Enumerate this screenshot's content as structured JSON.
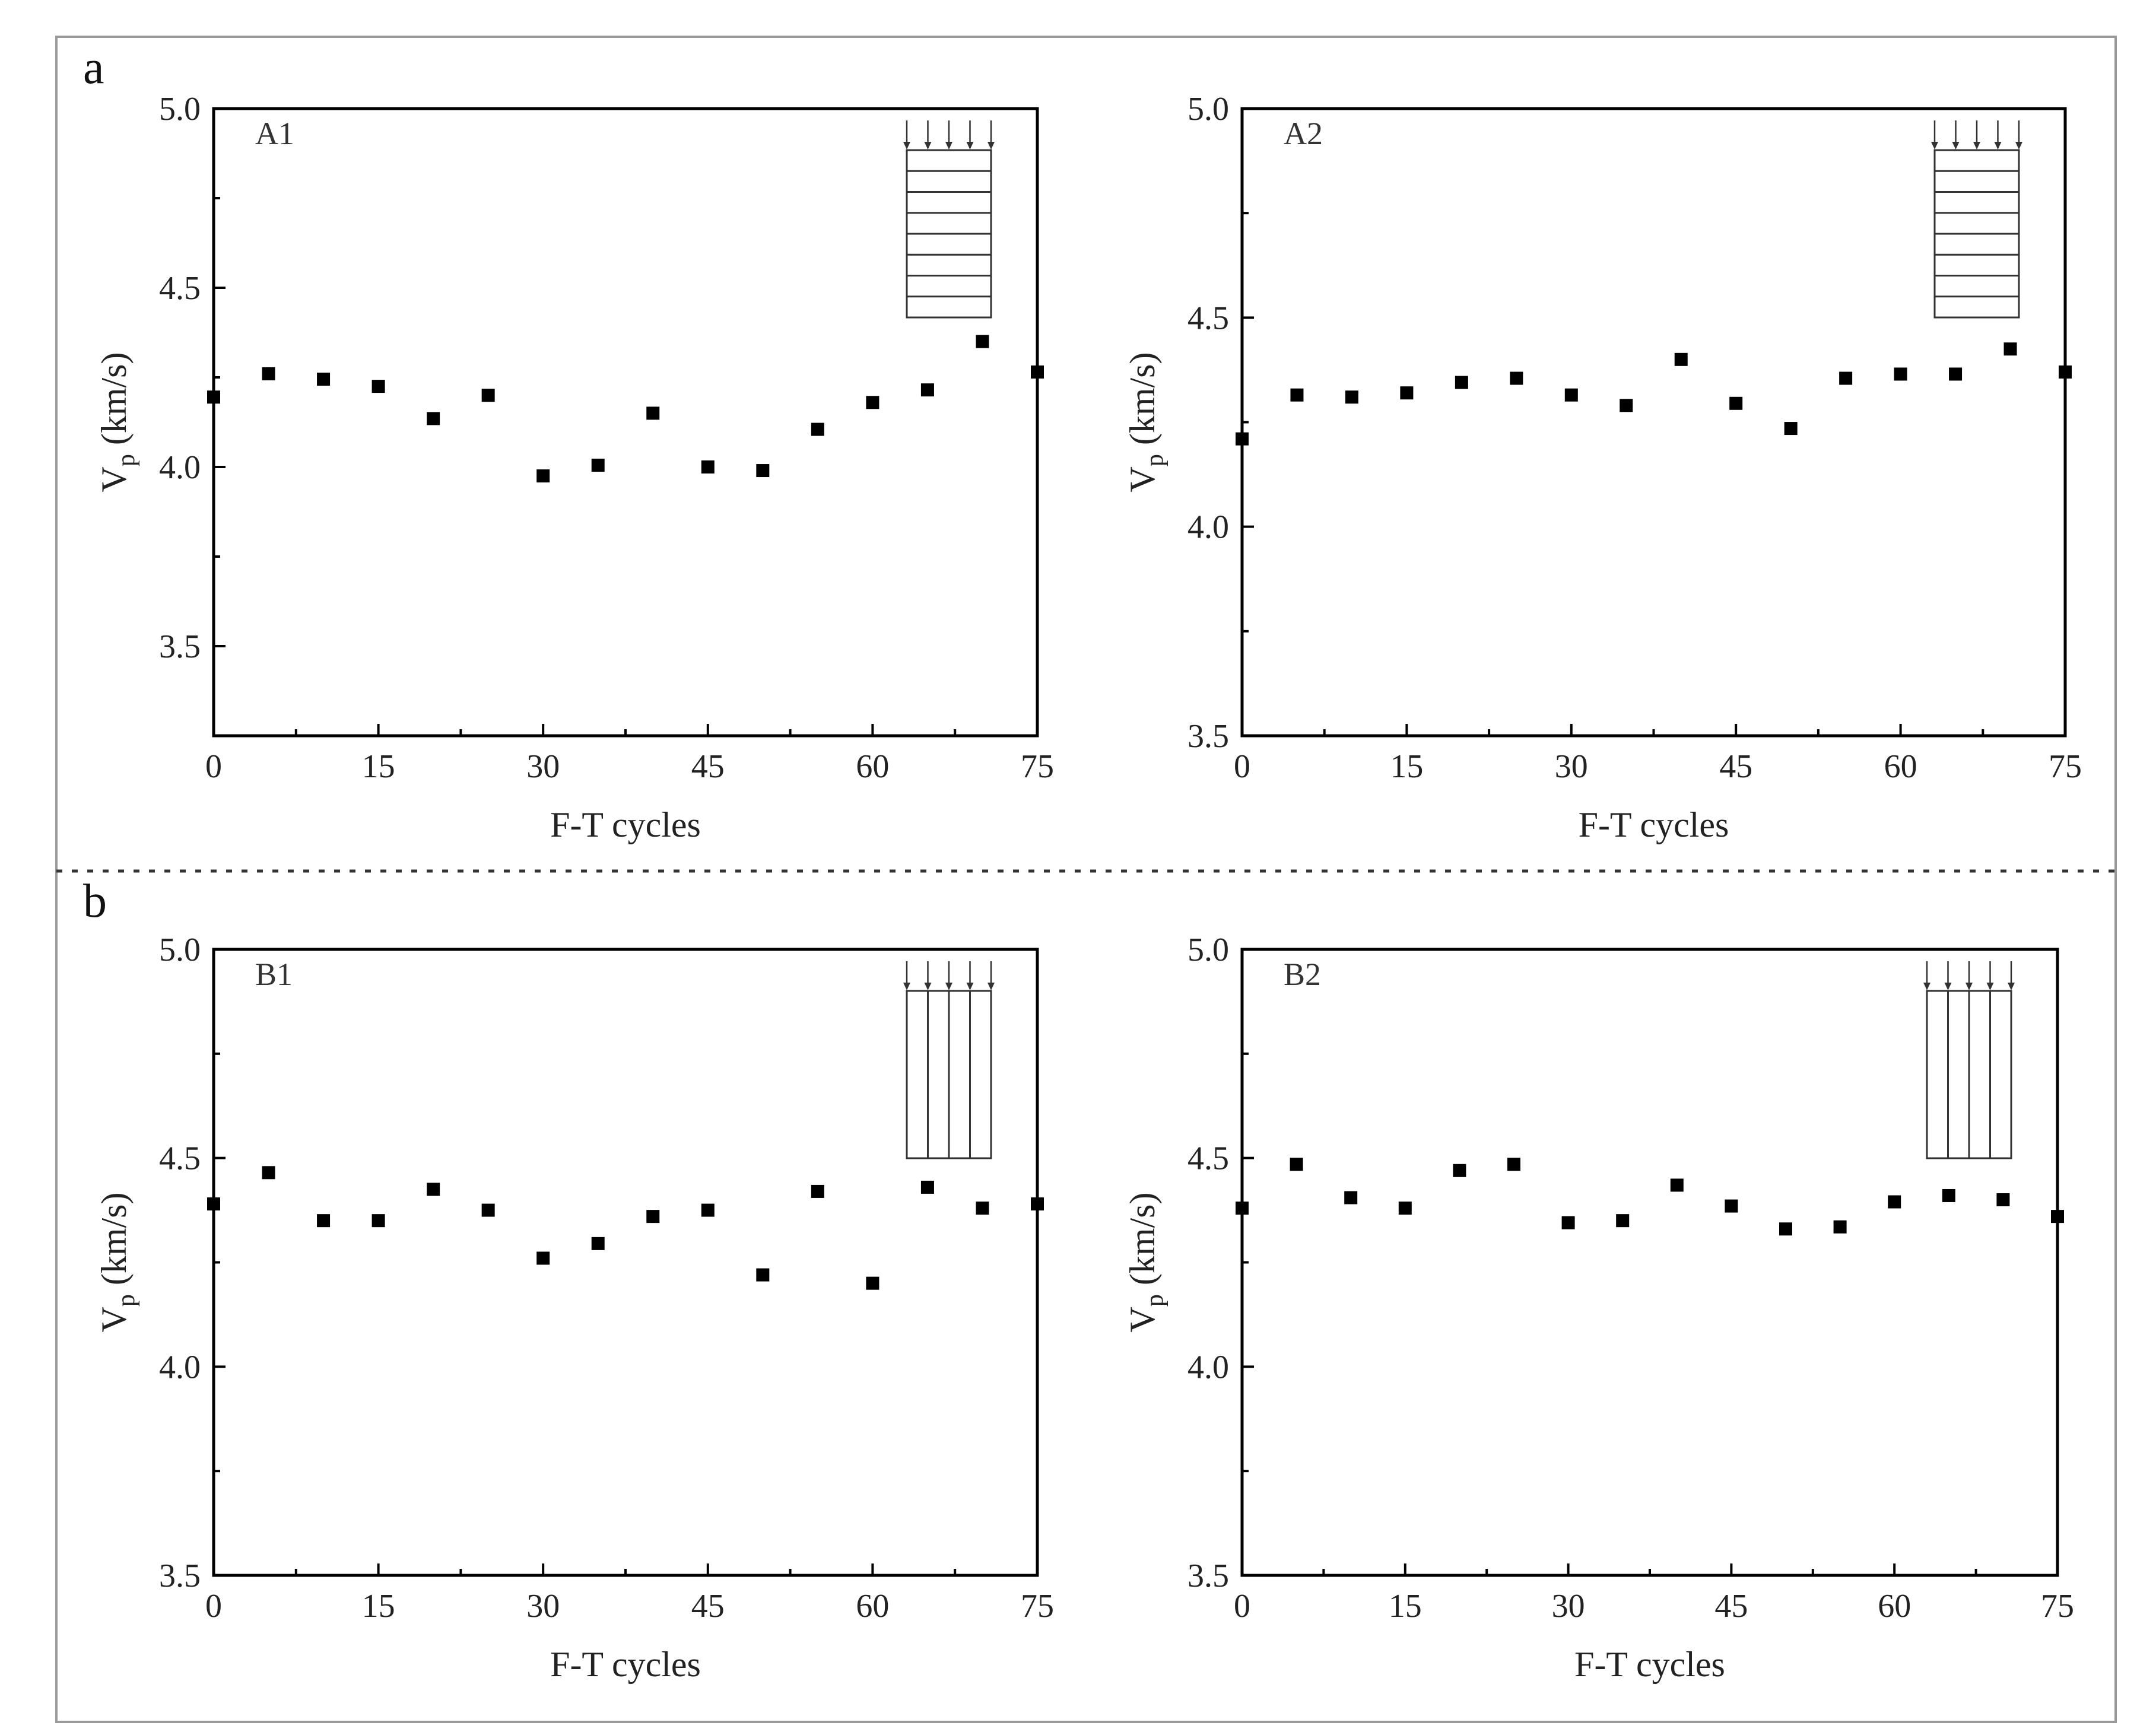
{
  "figure": {
    "section_labels": [
      "a",
      "b"
    ]
  },
  "chart_data": [
    {
      "type": "scatter",
      "panel_label": "A1",
      "xlabel": "F-T cycles",
      "ylabel": "V",
      "ylabel_subscript": "p",
      "ylabel_unit": " (km/s)",
      "xlim": [
        0,
        75
      ],
      "ylim": [
        3.25,
        5.0
      ],
      "xticks": [
        0,
        15,
        30,
        45,
        60,
        75
      ],
      "xtick_labels": [
        "0",
        "15",
        "30",
        "45",
        "60",
        "75"
      ],
      "yticks": [
        3.5,
        4.0,
        4.5,
        5.0
      ],
      "ytick_labels": [
        "3.5",
        "4.0",
        "4.5",
        "5.0"
      ],
      "inset_layers": "horizontal",
      "marker": "square",
      "marker_color": "#000000",
      "x": [
        0,
        5,
        10,
        15,
        20,
        25,
        30,
        35,
        40,
        45,
        50,
        55,
        60,
        65,
        70,
        75
      ],
      "y": [
        4.195,
        4.26,
        4.245,
        4.225,
        4.135,
        4.2,
        3.975,
        4.005,
        4.15,
        4.0,
        3.99,
        4.105,
        4.18,
        4.215,
        4.35,
        4.265
      ]
    },
    {
      "type": "scatter",
      "panel_label": "A2",
      "xlabel": "F-T cycles",
      "ylabel": "V",
      "ylabel_subscript": "p",
      "ylabel_unit": " (km/s)",
      "xlim": [
        0,
        75
      ],
      "ylim": [
        3.5,
        5.0
      ],
      "xticks": [
        0,
        15,
        30,
        45,
        60,
        75
      ],
      "xtick_labels": [
        "0",
        "15",
        "30",
        "45",
        "60",
        "75"
      ],
      "yticks": [
        3.5,
        4.0,
        4.5,
        5.0
      ],
      "ytick_labels": [
        "3.5",
        "4.0",
        "4.5",
        "5.0"
      ],
      "inset_layers": "horizontal",
      "marker": "square",
      "marker_color": "#000000",
      "x": [
        0,
        5,
        10,
        15,
        20,
        25,
        30,
        35,
        40,
        45,
        50,
        55,
        60,
        65,
        70,
        75
      ],
      "y": [
        4.21,
        4.315,
        4.31,
        4.32,
        4.345,
        4.355,
        4.315,
        4.29,
        4.4,
        4.295,
        4.235,
        4.355,
        4.365,
        4.365,
        4.425,
        4.37
      ]
    },
    {
      "type": "scatter",
      "panel_label": "B1",
      "xlabel": "F-T cycles",
      "ylabel": "V",
      "ylabel_subscript": "p",
      "ylabel_unit": " (km/s)",
      "xlim": [
        0,
        75
      ],
      "ylim": [
        3.5,
        5.0
      ],
      "xticks": [
        0,
        15,
        30,
        45,
        60,
        75
      ],
      "xtick_labels": [
        "0",
        "15",
        "30",
        "45",
        "60",
        "75"
      ],
      "yticks": [
        3.5,
        4.0,
        4.5,
        5.0
      ],
      "ytick_labels": [
        "3.5",
        "4.0",
        "4.5",
        "5.0"
      ],
      "inset_layers": "vertical",
      "marker": "square",
      "marker_color": "#000000",
      "x": [
        0,
        5,
        10,
        15,
        20,
        25,
        30,
        35,
        40,
        45,
        50,
        55,
        60,
        65,
        70,
        75
      ],
      "y": [
        4.39,
        4.465,
        4.35,
        4.35,
        4.425,
        4.375,
        4.26,
        4.295,
        4.36,
        4.375,
        4.22,
        4.42,
        4.2,
        4.43,
        4.38,
        4.39
      ]
    },
    {
      "type": "scatter",
      "panel_label": "B2",
      "xlabel": "F-T cycles",
      "ylabel": "V",
      "ylabel_subscript": "p",
      "ylabel_unit": " (km/s)",
      "xlim": [
        0,
        75
      ],
      "ylim": [
        3.5,
        5.0
      ],
      "xticks": [
        0,
        15,
        30,
        45,
        60,
        75
      ],
      "xtick_labels": [
        "0",
        "15",
        "30",
        "45",
        "60",
        "75"
      ],
      "yticks": [
        3.5,
        4.0,
        4.5,
        5.0
      ],
      "ytick_labels": [
        "3.5",
        "4.0",
        "4.5",
        "5.0"
      ],
      "inset_layers": "vertical",
      "marker": "square",
      "marker_color": "#000000",
      "x": [
        0,
        5,
        10,
        15,
        20,
        25,
        30,
        35,
        40,
        45,
        50,
        55,
        60,
        65,
        70,
        75
      ],
      "y": [
        4.38,
        4.485,
        4.405,
        4.38,
        4.47,
        4.485,
        4.345,
        4.35,
        4.435,
        4.385,
        4.33,
        4.335,
        4.395,
        4.41,
        4.4,
        4.36
      ]
    }
  ]
}
